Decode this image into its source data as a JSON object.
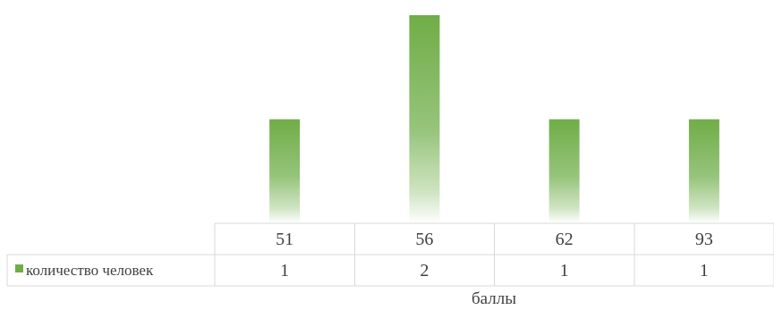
{
  "chart_data": {
    "type": "bar",
    "categories": [
      "51",
      "56",
      "62",
      "93"
    ],
    "series": [
      {
        "name": "количество человек",
        "values": [
          1,
          2,
          1,
          1
        ],
        "color": "#70ad47"
      }
    ],
    "xlabel": "баллы",
    "ylabel": "",
    "ylim": [
      0,
      2
    ],
    "data_table": true,
    "legend": "data-table",
    "grid": false
  }
}
